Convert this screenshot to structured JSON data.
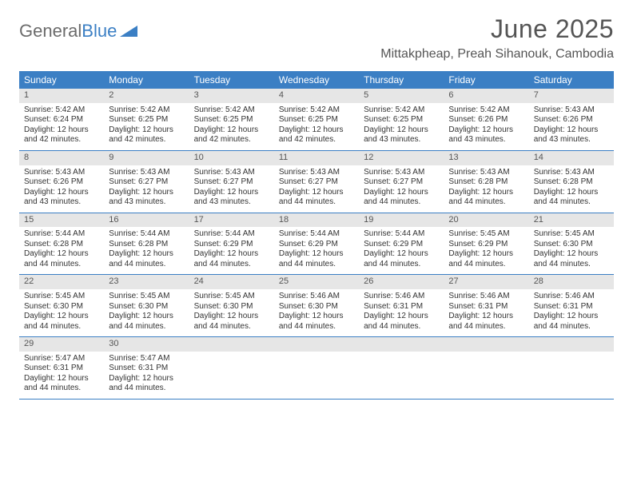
{
  "brand": {
    "part1": "General",
    "part2": "Blue"
  },
  "title": "June 2025",
  "location": "Mittakpheap, Preah Sihanouk, Cambodia",
  "colors": {
    "header_bg": "#3b7fc4",
    "daynum_bg": "#e6e6e6",
    "text": "#333333",
    "title_text": "#555555",
    "logo_gray": "#6b6b6b",
    "rule": "#3b7fc4"
  },
  "days_of_week": [
    "Sunday",
    "Monday",
    "Tuesday",
    "Wednesday",
    "Thursday",
    "Friday",
    "Saturday"
  ],
  "grid": {
    "rows": 5,
    "cols": 7,
    "first_weekday_index": 0,
    "days_in_month": 30
  },
  "days": [
    {
      "n": 1,
      "sunrise": "5:42 AM",
      "sunset": "6:24 PM",
      "daylight": "12 hours and 42 minutes."
    },
    {
      "n": 2,
      "sunrise": "5:42 AM",
      "sunset": "6:25 PM",
      "daylight": "12 hours and 42 minutes."
    },
    {
      "n": 3,
      "sunrise": "5:42 AM",
      "sunset": "6:25 PM",
      "daylight": "12 hours and 42 minutes."
    },
    {
      "n": 4,
      "sunrise": "5:42 AM",
      "sunset": "6:25 PM",
      "daylight": "12 hours and 42 minutes."
    },
    {
      "n": 5,
      "sunrise": "5:42 AM",
      "sunset": "6:25 PM",
      "daylight": "12 hours and 43 minutes."
    },
    {
      "n": 6,
      "sunrise": "5:42 AM",
      "sunset": "6:26 PM",
      "daylight": "12 hours and 43 minutes."
    },
    {
      "n": 7,
      "sunrise": "5:43 AM",
      "sunset": "6:26 PM",
      "daylight": "12 hours and 43 minutes."
    },
    {
      "n": 8,
      "sunrise": "5:43 AM",
      "sunset": "6:26 PM",
      "daylight": "12 hours and 43 minutes."
    },
    {
      "n": 9,
      "sunrise": "5:43 AM",
      "sunset": "6:27 PM",
      "daylight": "12 hours and 43 minutes."
    },
    {
      "n": 10,
      "sunrise": "5:43 AM",
      "sunset": "6:27 PM",
      "daylight": "12 hours and 43 minutes."
    },
    {
      "n": 11,
      "sunrise": "5:43 AM",
      "sunset": "6:27 PM",
      "daylight": "12 hours and 44 minutes."
    },
    {
      "n": 12,
      "sunrise": "5:43 AM",
      "sunset": "6:27 PM",
      "daylight": "12 hours and 44 minutes."
    },
    {
      "n": 13,
      "sunrise": "5:43 AM",
      "sunset": "6:28 PM",
      "daylight": "12 hours and 44 minutes."
    },
    {
      "n": 14,
      "sunrise": "5:43 AM",
      "sunset": "6:28 PM",
      "daylight": "12 hours and 44 minutes."
    },
    {
      "n": 15,
      "sunrise": "5:44 AM",
      "sunset": "6:28 PM",
      "daylight": "12 hours and 44 minutes."
    },
    {
      "n": 16,
      "sunrise": "5:44 AM",
      "sunset": "6:28 PM",
      "daylight": "12 hours and 44 minutes."
    },
    {
      "n": 17,
      "sunrise": "5:44 AM",
      "sunset": "6:29 PM",
      "daylight": "12 hours and 44 minutes."
    },
    {
      "n": 18,
      "sunrise": "5:44 AM",
      "sunset": "6:29 PM",
      "daylight": "12 hours and 44 minutes."
    },
    {
      "n": 19,
      "sunrise": "5:44 AM",
      "sunset": "6:29 PM",
      "daylight": "12 hours and 44 minutes."
    },
    {
      "n": 20,
      "sunrise": "5:45 AM",
      "sunset": "6:29 PM",
      "daylight": "12 hours and 44 minutes."
    },
    {
      "n": 21,
      "sunrise": "5:45 AM",
      "sunset": "6:30 PM",
      "daylight": "12 hours and 44 minutes."
    },
    {
      "n": 22,
      "sunrise": "5:45 AM",
      "sunset": "6:30 PM",
      "daylight": "12 hours and 44 minutes."
    },
    {
      "n": 23,
      "sunrise": "5:45 AM",
      "sunset": "6:30 PM",
      "daylight": "12 hours and 44 minutes."
    },
    {
      "n": 24,
      "sunrise": "5:45 AM",
      "sunset": "6:30 PM",
      "daylight": "12 hours and 44 minutes."
    },
    {
      "n": 25,
      "sunrise": "5:46 AM",
      "sunset": "6:30 PM",
      "daylight": "12 hours and 44 minutes."
    },
    {
      "n": 26,
      "sunrise": "5:46 AM",
      "sunset": "6:31 PM",
      "daylight": "12 hours and 44 minutes."
    },
    {
      "n": 27,
      "sunrise": "5:46 AM",
      "sunset": "6:31 PM",
      "daylight": "12 hours and 44 minutes."
    },
    {
      "n": 28,
      "sunrise": "5:46 AM",
      "sunset": "6:31 PM",
      "daylight": "12 hours and 44 minutes."
    },
    {
      "n": 29,
      "sunrise": "5:47 AM",
      "sunset": "6:31 PM",
      "daylight": "12 hours and 44 minutes."
    },
    {
      "n": 30,
      "sunrise": "5:47 AM",
      "sunset": "6:31 PM",
      "daylight": "12 hours and 44 minutes."
    }
  ],
  "labels": {
    "sunrise_prefix": "Sunrise: ",
    "sunset_prefix": "Sunset: ",
    "daylight_prefix": "Daylight: "
  }
}
